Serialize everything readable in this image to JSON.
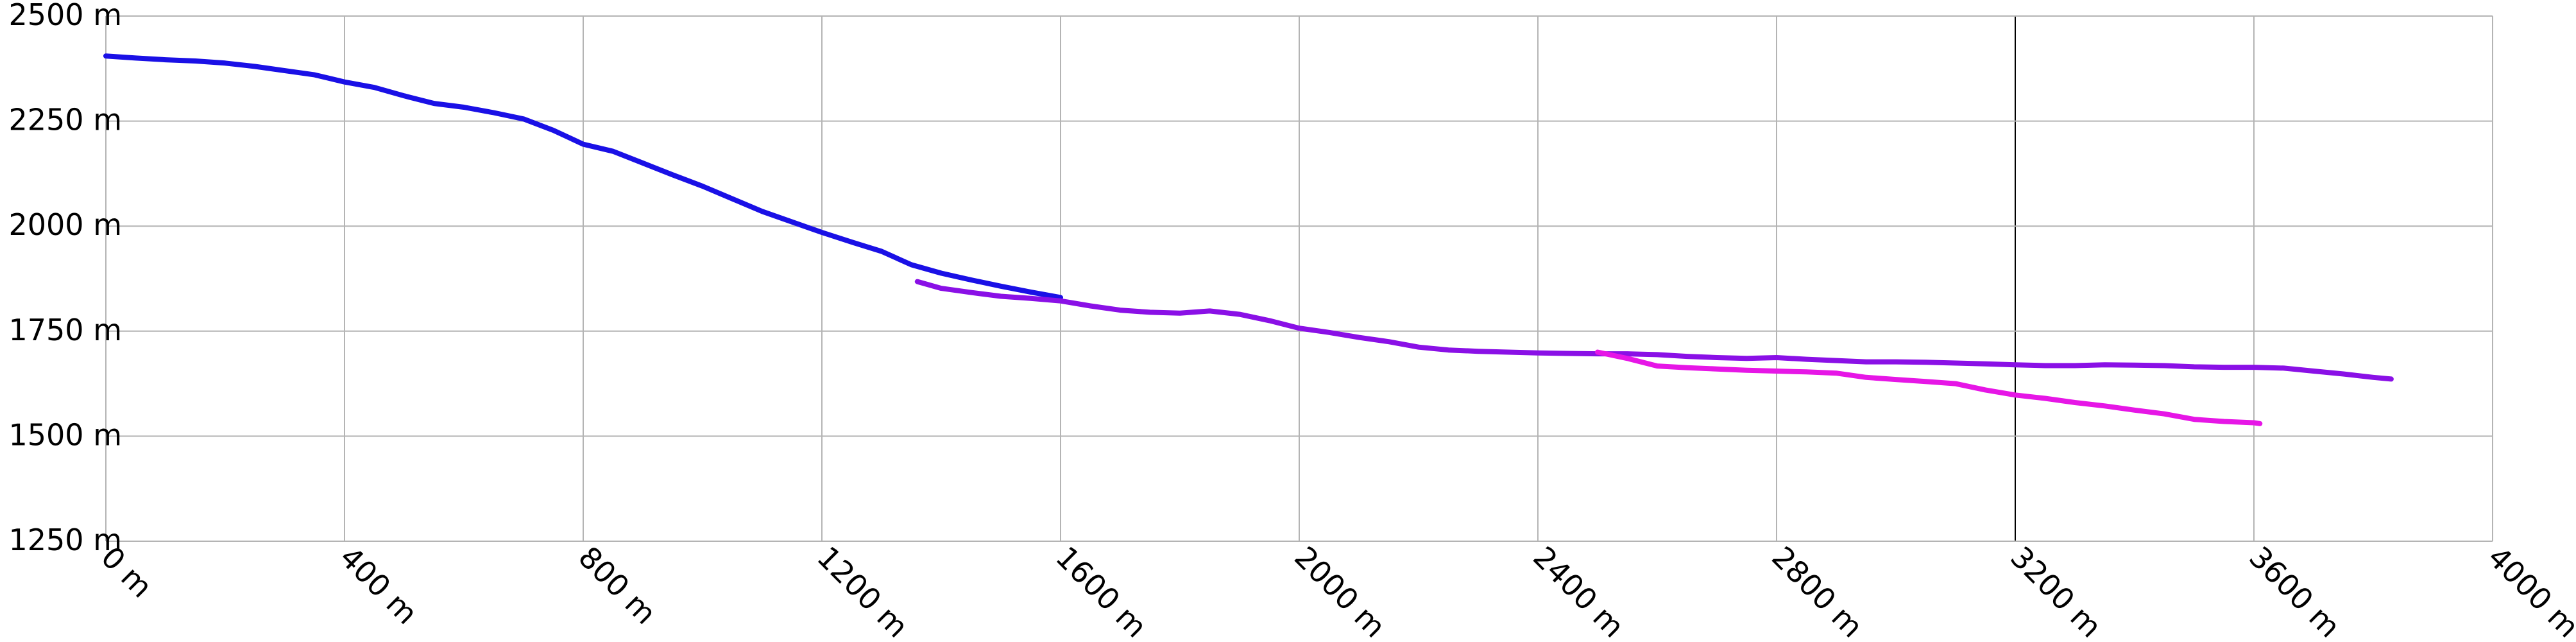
{
  "chart_data": {
    "type": "line",
    "title": "",
    "xlabel": "",
    "ylabel": "",
    "xlim": [
      0,
      4000
    ],
    "ylim": [
      1250,
      2500
    ],
    "x_ticks": [
      0,
      400,
      800,
      1200,
      1600,
      2000,
      2400,
      2800,
      3200,
      3600,
      4000
    ],
    "x_tick_labels": [
      "0 m",
      "400 m",
      "800 m",
      "1200 m",
      "1600 m",
      "2000 m",
      "2400 m",
      "2800 m",
      "3200 m",
      "3600 m",
      "4000 m"
    ],
    "y_ticks": [
      1250,
      1500,
      1750,
      2000,
      2250,
      2500
    ],
    "y_tick_labels": [
      "1250 m",
      "1500 m",
      "1750 m",
      "2000 m",
      "2250 m",
      "2500 m"
    ],
    "highlight_x": 3200,
    "grid": true,
    "legend": "none",
    "series": [
      {
        "color": "#1a10e6",
        "x": [
          0,
          50,
          100,
          150,
          200,
          250,
          300,
          350,
          400,
          450,
          500,
          550,
          600,
          650,
          700,
          750,
          800,
          850,
          900,
          950,
          1000,
          1050,
          1100,
          1150,
          1200,
          1250,
          1300,
          1350,
          1400,
          1450,
          1500,
          1550,
          1600
        ],
        "y": [
          2405,
          2400,
          2396,
          2393,
          2388,
          2380,
          2370,
          2360,
          2343,
          2330,
          2310,
          2292,
          2283,
          2270,
          2255,
          2228,
          2195,
          2178,
          2150,
          2122,
          2095,
          2065,
          2035,
          2010,
          1985,
          1962,
          1940,
          1908,
          1888,
          1872,
          1857,
          1843,
          1830
        ]
      },
      {
        "color": "#8a10e6",
        "x": [
          1360,
          1400,
          1450,
          1500,
          1550,
          1600,
          1650,
          1700,
          1750,
          1800,
          1850,
          1900,
          1950,
          2000,
          2050,
          2100,
          2150,
          2200,
          2250,
          2300,
          2350,
          2400,
          2450,
          2500,
          2550,
          2600,
          2650,
          2700,
          2750,
          2800,
          2850,
          2900,
          2950,
          3000,
          3050,
          3100,
          3150,
          3200,
          3250,
          3300,
          3350,
          3400,
          3450,
          3500,
          3550,
          3600,
          3650,
          3700,
          3750,
          3800,
          3830
        ],
        "y": [
          1868,
          1852,
          1842,
          1833,
          1828,
          1822,
          1810,
          1800,
          1795,
          1793,
          1798,
          1790,
          1775,
          1757,
          1747,
          1735,
          1725,
          1712,
          1705,
          1702,
          1700,
          1698,
          1697,
          1696,
          1696,
          1694,
          1690,
          1687,
          1685,
          1687,
          1683,
          1680,
          1677,
          1677,
          1676,
          1674,
          1672,
          1670,
          1668,
          1668,
          1670,
          1669,
          1668,
          1665,
          1664,
          1664,
          1662,
          1655,
          1648,
          1640,
          1636
        ]
      },
      {
        "color": "#e616e6",
        "x": [
          2500,
          2550,
          2600,
          2650,
          2700,
          2750,
          2800,
          2850,
          2900,
          2950,
          3000,
          3050,
          3100,
          3150,
          3200,
          3250,
          3300,
          3350,
          3400,
          3450,
          3500,
          3550,
          3600,
          3610
        ],
        "y": [
          1700,
          1685,
          1667,
          1663,
          1660,
          1657,
          1655,
          1653,
          1650,
          1640,
          1635,
          1630,
          1625,
          1610,
          1598,
          1590,
          1580,
          1572,
          1562,
          1553,
          1540,
          1535,
          1532,
          1530
        ]
      }
    ]
  }
}
